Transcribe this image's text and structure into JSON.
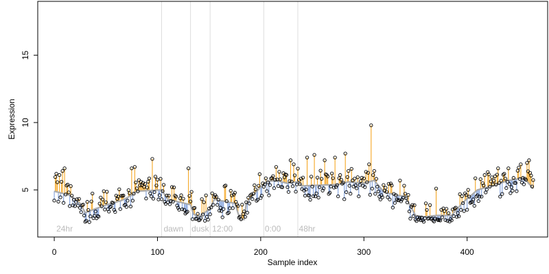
{
  "chart_data": {
    "type": "scatter",
    "title": "",
    "xlabel": "Sample index",
    "ylabel": "Expression",
    "xlim": [
      -16,
      478
    ],
    "ylim": [
      1.5,
      19.0
    ],
    "xticks": [
      0,
      100,
      200,
      300,
      400
    ],
    "yticks": [
      5,
      10,
      15
    ],
    "grid": false,
    "legend": "none",
    "colors": {
      "above_fit": "#f5a623",
      "below_fit": "#7f9fdc",
      "fit_line": "#aaaaaa",
      "period_line": "#dddddd",
      "period_label": "#bbbbbb",
      "point_edge": "#000000"
    },
    "period_dividers": [
      104,
      132,
      151,
      203,
      236
    ],
    "period_labels": [
      {
        "x": 2,
        "text": "24hr"
      },
      {
        "x": 106,
        "text": "dawn"
      },
      {
        "x": 133,
        "text": "dusk"
      },
      {
        "x": 153,
        "text": "12:00"
      },
      {
        "x": 204,
        "text": "0:00"
      },
      {
        "x": 237,
        "text": "48hr"
      }
    ],
    "fit_profile": [
      [
        0,
        4.9
      ],
      [
        15,
        4.6
      ],
      [
        25,
        4.0
      ],
      [
        30,
        3.3
      ],
      [
        40,
        3.6
      ],
      [
        55,
        4.0
      ],
      [
        65,
        4.2
      ],
      [
        75,
        4.6
      ],
      [
        80,
        4.9
      ],
      [
        104,
        5.0
      ],
      [
        110,
        4.3
      ],
      [
        132,
        3.9
      ],
      [
        135,
        3.2
      ],
      [
        140,
        3.0
      ],
      [
        151,
        3.6
      ],
      [
        155,
        4.3
      ],
      [
        175,
        4.0
      ],
      [
        180,
        2.8
      ],
      [
        184,
        2.8
      ],
      [
        186,
        4.0
      ],
      [
        195,
        4.8
      ],
      [
        205,
        5.6
      ],
      [
        215,
        5.7
      ],
      [
        225,
        5.5
      ],
      [
        236,
        5.6
      ],
      [
        240,
        5.3
      ],
      [
        275,
        5.4
      ],
      [
        285,
        5.6
      ],
      [
        300,
        5.5
      ],
      [
        310,
        5.7
      ],
      [
        320,
        4.8
      ],
      [
        340,
        4.5
      ],
      [
        350,
        3.1
      ],
      [
        358,
        3.0
      ],
      [
        370,
        3.1
      ],
      [
        385,
        3.1
      ],
      [
        395,
        4.0
      ],
      [
        410,
        5.0
      ],
      [
        425,
        5.3
      ],
      [
        440,
        5.7
      ],
      [
        455,
        5.9
      ],
      [
        465,
        5.0
      ]
    ],
    "n_points": 465,
    "random_seed": 1337,
    "outliers": [
      [
        2,
        6.2
      ],
      [
        5,
        6.1
      ],
      [
        8,
        6.4
      ],
      [
        10,
        6.6
      ],
      [
        38,
        2.9
      ],
      [
        75,
        6.6
      ],
      [
        78,
        6.7
      ],
      [
        95,
        7.3
      ],
      [
        130,
        6.6
      ],
      [
        215,
        6.7
      ],
      [
        229,
        7.2
      ],
      [
        232,
        6.9
      ],
      [
        245,
        7.4
      ],
      [
        252,
        7.6
      ],
      [
        262,
        7.2
      ],
      [
        272,
        7.4
      ],
      [
        282,
        7.7
      ],
      [
        285,
        6.4
      ],
      [
        305,
        6.9
      ],
      [
        307,
        9.8
      ],
      [
        370,
        5.1
      ],
      [
        430,
        6.4
      ],
      [
        440,
        6.6
      ],
      [
        452,
        6.9
      ],
      [
        458,
        7.0
      ],
      [
        460,
        7.2
      ],
      [
        430,
        6.6
      ]
    ]
  }
}
